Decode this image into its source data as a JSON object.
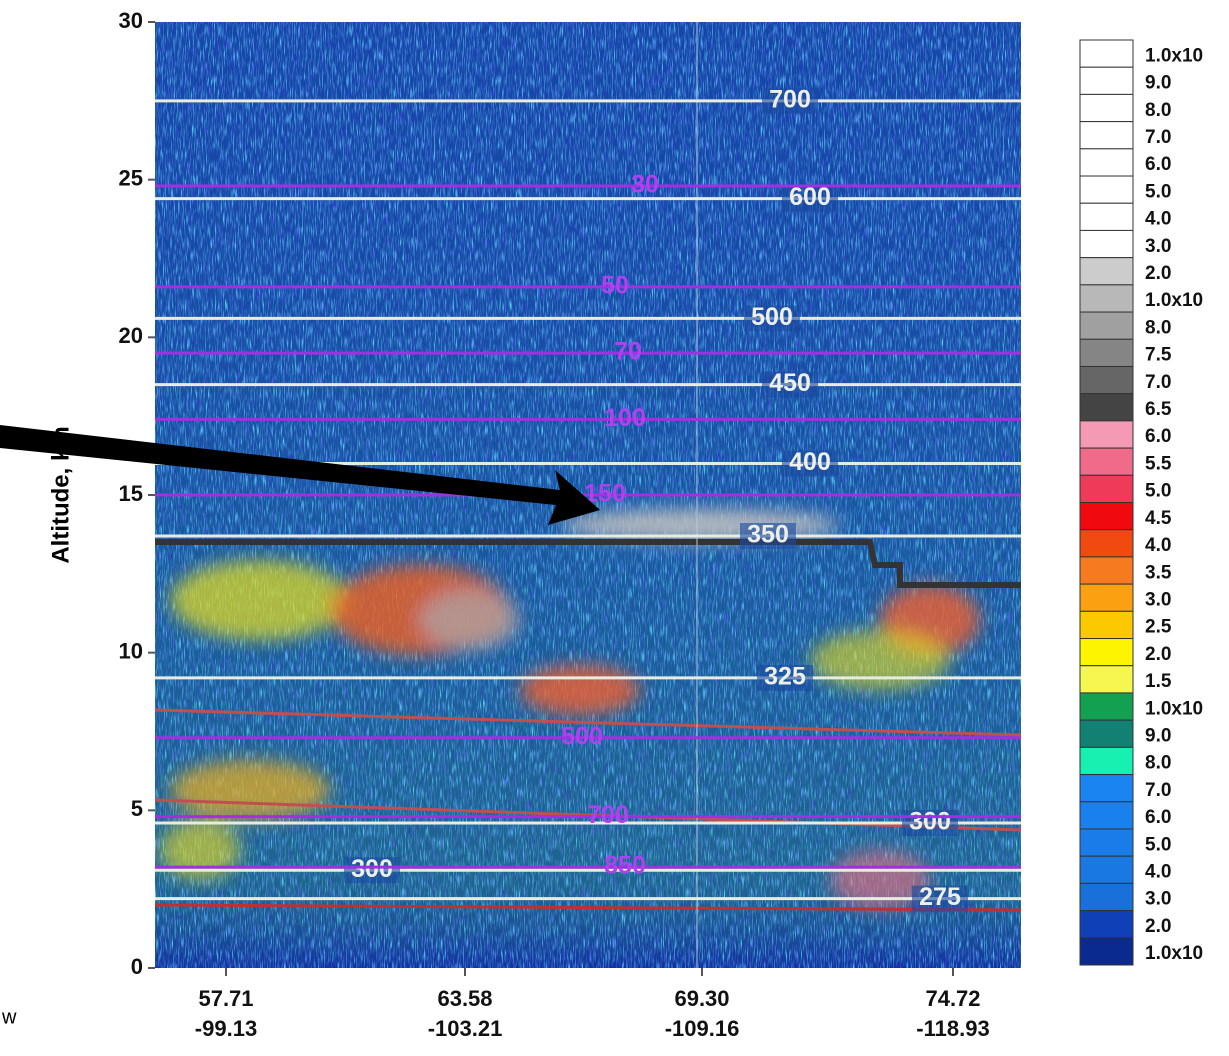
{
  "chart_data": {
    "type": "curtain",
    "ylabel": "Altitude, km",
    "ylim": [
      0,
      30
    ],
    "yticks": [
      0,
      5,
      10,
      15,
      20,
      25,
      30
    ],
    "x_labels": [
      [
        "57.71",
        "-99.13"
      ],
      [
        "63.58",
        "-103.21"
      ],
      [
        "69.30",
        "-109.16"
      ],
      [
        "74.72",
        "-118.93"
      ]
    ],
    "theta_contours": [
      {
        "label": "700",
        "altitude": 27.5
      },
      {
        "label": "600",
        "altitude": 24.4
      },
      {
        "label": "500",
        "altitude": 20.6
      },
      {
        "label": "450",
        "altitude": 18.5
      },
      {
        "label": "400",
        "altitude": 16.0
      },
      {
        "label": "350",
        "altitude": 13.7
      },
      {
        "label": "325",
        "altitude": 9.2
      },
      {
        "label": "300",
        "altitude": 3.1
      },
      {
        "label": "300",
        "altitude": 4.6
      },
      {
        "label": "275",
        "altitude": 2.2
      }
    ],
    "pressure_contours": [
      {
        "label": "30",
        "altitude": 24.8
      },
      {
        "label": "50",
        "altitude": 21.6
      },
      {
        "label": "70",
        "altitude": 19.5
      },
      {
        "label": "100",
        "altitude": 17.4
      },
      {
        "label": "150",
        "altitude": 15.0
      },
      {
        "label": "500",
        "altitude": 7.3
      },
      {
        "label": "700",
        "altitude": 4.8
      },
      {
        "label": "850",
        "altitude": 3.2
      }
    ],
    "colorbar": {
      "labels": [
        "1.0x10",
        "9.0",
        "8.0",
        "7.0",
        "6.0",
        "5.0",
        "4.0",
        "3.0",
        "2.0",
        "1.0x10",
        "8.0",
        "7.5",
        "7.0",
        "6.5",
        "6.0",
        "5.5",
        "5.0",
        "4.5",
        "4.0",
        "3.5",
        "3.0",
        "2.5",
        "2.0",
        "1.5",
        "1.0x10",
        "9.0",
        "8.0",
        "7.0",
        "6.0",
        "5.0",
        "4.0",
        "3.0",
        "2.0",
        "1.0x10"
      ],
      "colors": [
        "#ffffff",
        "#ffffff",
        "#ffffff",
        "#ffffff",
        "#ffffff",
        "#ffffff",
        "#ffffff",
        "#ffffff",
        "#cccccc",
        "#b8b8b8",
        "#a0a0a0",
        "#858585",
        "#666666",
        "#444444",
        "#f59ab5",
        "#f06a8a",
        "#ef3a5a",
        "#f00a10",
        "#f04a10",
        "#f57a20",
        "#fba010",
        "#fcc800",
        "#fcf400",
        "#f6f650",
        "#13a050",
        "#128072",
        "#16f0b0",
        "#1a84f0",
        "#1a80ee",
        "#1a7ce8",
        "#1a78e2",
        "#1a70da",
        "#1040b8",
        "#0a2a90"
      ]
    },
    "corner_text": "w"
  }
}
